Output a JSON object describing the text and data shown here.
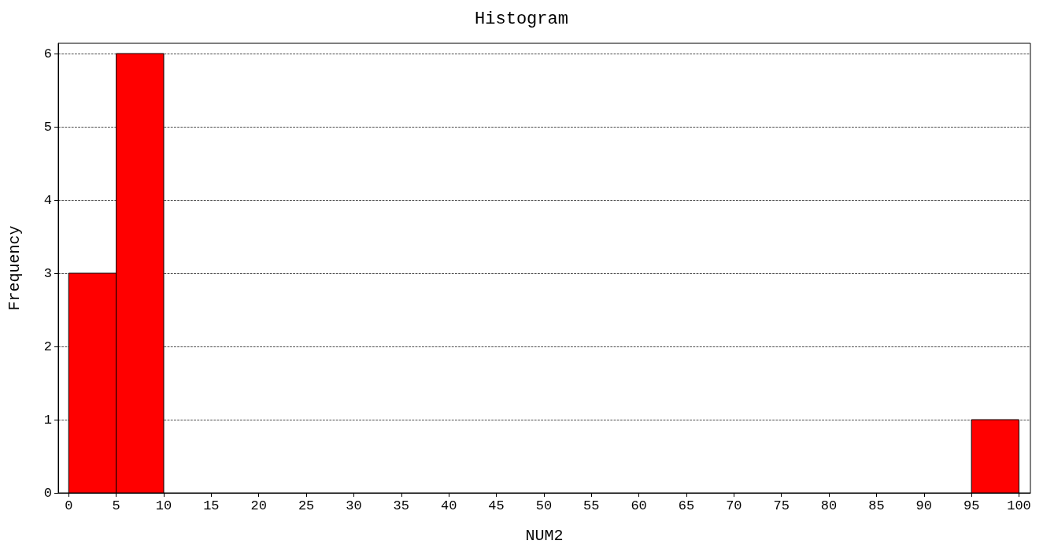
{
  "chart_data": {
    "type": "histogram",
    "title": "Histogram",
    "xlabel": "NUM2",
    "ylabel": "Frequency",
    "bins": [
      0,
      5,
      10,
      15,
      20,
      25,
      30,
      35,
      40,
      45,
      50,
      55,
      60,
      65,
      70,
      75,
      80,
      85,
      90,
      95,
      100
    ],
    "values": [
      3,
      6,
      0,
      0,
      0,
      0,
      0,
      0,
      0,
      0,
      0,
      0,
      0,
      0,
      0,
      0,
      0,
      0,
      0,
      1
    ],
    "color": "#ff0000",
    "xlim": [
      -1.1,
      101.2
    ],
    "xticks": [
      0,
      5,
      10,
      15,
      20,
      25,
      30,
      35,
      40,
      45,
      50,
      55,
      60,
      65,
      70,
      75,
      80,
      85,
      90,
      95,
      100
    ],
    "ylim": [
      0,
      6.14
    ],
    "yticks": [
      0,
      1,
      2,
      3,
      4,
      5,
      6
    ],
    "grid": "y"
  }
}
